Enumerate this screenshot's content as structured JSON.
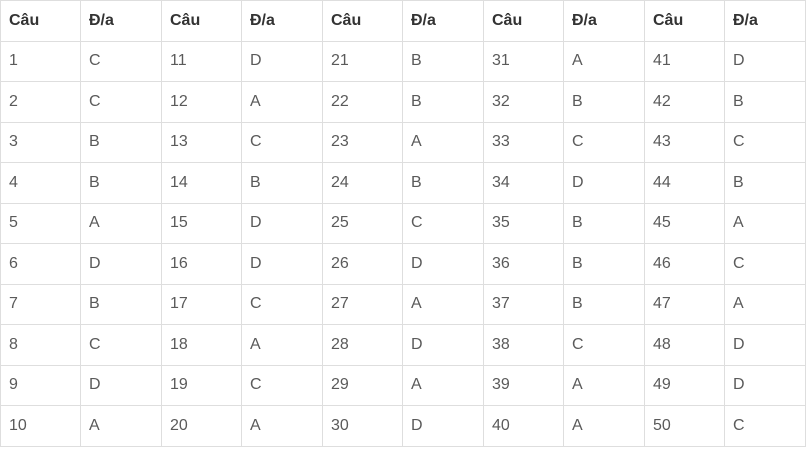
{
  "header": [
    "Câu",
    "Đ/a",
    "Câu",
    "Đ/a",
    "Câu",
    "Đ/a",
    "Câu",
    "Đ/a",
    "Câu",
    "Đ/a"
  ],
  "rows": [
    [
      "1",
      "C",
      "11",
      "D",
      "21",
      "B",
      "31",
      "A",
      "41",
      "D"
    ],
    [
      "2",
      "C",
      "12",
      "A",
      "22",
      "B",
      "32",
      "B",
      "42",
      "B"
    ],
    [
      "3",
      "B",
      "13",
      "C",
      "23",
      "A",
      "33",
      "C",
      "43",
      "C"
    ],
    [
      "4",
      "B",
      "14",
      "B",
      "24",
      "B",
      "34",
      "D",
      "44",
      "B"
    ],
    [
      "5",
      "A",
      "15",
      "D",
      "25",
      "C",
      "35",
      "B",
      "45",
      "A"
    ],
    [
      "6",
      "D",
      "16",
      "D",
      "26",
      "D",
      "36",
      "B",
      "46",
      "C"
    ],
    [
      "7",
      "B",
      "17",
      "C",
      "27",
      "A",
      "37",
      "B",
      "47",
      "A"
    ],
    [
      "8",
      "C",
      "18",
      "A",
      "28",
      "D",
      "38",
      "C",
      "48",
      "D"
    ],
    [
      "9",
      "D",
      "19",
      "C",
      "29",
      "A",
      "39",
      "A",
      "49",
      "D"
    ],
    [
      "10",
      "A",
      "20",
      "A",
      "30",
      "D",
      "40",
      "A",
      "50",
      "C"
    ]
  ]
}
